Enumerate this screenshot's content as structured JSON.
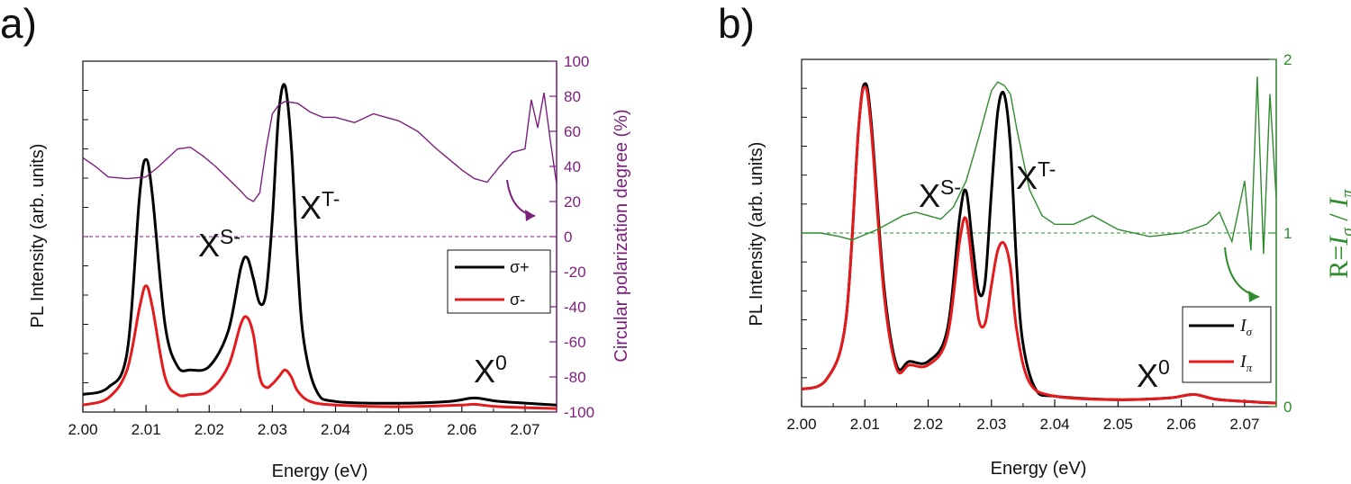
{
  "chart_data": [
    {
      "type": "line",
      "panel_label": "a)",
      "xlabel": "Energy (eV)",
      "ylabel": "PL Intensity (arb. units)",
      "y2label": "Circular polarization degree (%)",
      "xlim": [
        2.0,
        2.075
      ],
      "ylim": [
        0,
        1
      ],
      "y2lim": [
        -100,
        100
      ],
      "x_ticks": [
        "2.00",
        "2.01",
        "2.02",
        "2.03",
        "2.04",
        "2.05",
        "2.06",
        "2.07"
      ],
      "y2_ticks": [
        "-100",
        "-80",
        "-60",
        "-40",
        "-20",
        "0",
        "20",
        "40",
        "60",
        "80",
        "100"
      ],
      "grid": false,
      "legend_position": "middle-right",
      "colors": {
        "axis": "#111111",
        "sigma_plus": "#000000",
        "sigma_minus": "#e41a1c",
        "polarization": "#7b1f7b"
      },
      "annotations": [
        {
          "base": "X",
          "sup": "S-",
          "x": 2.0255,
          "y": 0.43
        },
        {
          "base": "X",
          "sup": "T-",
          "x": 2.035,
          "y": 0.56
        },
        {
          "base": "X",
          "sup": "0",
          "x": 2.064,
          "y": 0.09
        }
      ],
      "legend": [
        "σ+",
        "σ-"
      ],
      "series": [
        {
          "name": "σ+",
          "axis": "left",
          "x": [
            2.0,
            2.004,
            2.007,
            2.009,
            2.01,
            2.011,
            2.013,
            2.015,
            2.017,
            2.02,
            2.023,
            2.025,
            2.026,
            2.027,
            2.028,
            2.029,
            2.03,
            2.031,
            2.032,
            2.033,
            2.034,
            2.035,
            2.037,
            2.04,
            2.05,
            2.058,
            2.062,
            2.066,
            2.075
          ],
          "y": [
            0.05,
            0.07,
            0.17,
            0.62,
            0.72,
            0.62,
            0.25,
            0.13,
            0.12,
            0.13,
            0.23,
            0.41,
            0.44,
            0.38,
            0.31,
            0.34,
            0.55,
            0.85,
            0.93,
            0.76,
            0.42,
            0.2,
            0.06,
            0.03,
            0.025,
            0.03,
            0.04,
            0.03,
            0.02
          ]
        },
        {
          "name": "σ-",
          "axis": "left",
          "x": [
            2.0,
            2.004,
            2.007,
            2.009,
            2.01,
            2.011,
            2.013,
            2.015,
            2.017,
            2.02,
            2.023,
            2.025,
            2.026,
            2.027,
            2.028,
            2.029,
            2.03,
            2.031,
            2.032,
            2.033,
            2.034,
            2.036,
            2.04,
            2.05,
            2.06,
            2.062,
            2.066,
            2.075
          ],
          "y": [
            0.02,
            0.04,
            0.12,
            0.3,
            0.36,
            0.3,
            0.1,
            0.05,
            0.05,
            0.06,
            0.13,
            0.25,
            0.27,
            0.22,
            0.1,
            0.07,
            0.08,
            0.1,
            0.12,
            0.1,
            0.06,
            0.03,
            0.02,
            0.015,
            0.02,
            0.022,
            0.015,
            0.01
          ]
        },
        {
          "name": "Circular polarization degree",
          "axis": "right",
          "x": [
            2.0,
            2.002,
            2.004,
            2.007,
            2.01,
            2.012,
            2.015,
            2.017,
            2.019,
            2.021,
            2.023,
            2.025,
            2.026,
            2.027,
            2.028,
            2.029,
            2.03,
            2.031,
            2.032,
            2.034,
            2.036,
            2.038,
            2.04,
            2.043,
            2.046,
            2.048,
            2.05,
            2.053,
            2.056,
            2.058,
            2.06,
            2.062,
            2.064,
            2.066,
            2.068,
            2.07,
            2.071,
            2.072,
            2.073,
            2.074,
            2.075
          ],
          "y": [
            45,
            40,
            34,
            33,
            34,
            40,
            50,
            51,
            46,
            40,
            33,
            26,
            22,
            20,
            25,
            50,
            70,
            75,
            77,
            76,
            71,
            68,
            68,
            65,
            70,
            68,
            66,
            60,
            50,
            44,
            38,
            33,
            31,
            40,
            48,
            50,
            78,
            62,
            82,
            55,
            30
          ]
        }
      ],
      "reference_line": {
        "axis": "right",
        "y": 0
      }
    },
    {
      "type": "line",
      "panel_label": "b)",
      "xlabel": "Energy (eV)",
      "ylabel": "PL Intensity (arb. units)",
      "y2label": "R=Iσ / Iπ",
      "xlim": [
        2.0,
        2.075
      ],
      "ylim": [
        0,
        1
      ],
      "y2lim": [
        0,
        2
      ],
      "x_ticks": [
        "2.00",
        "2.01",
        "2.02",
        "2.03",
        "2.04",
        "2.05",
        "2.06",
        "2.07"
      ],
      "y2_ticks": [
        "0",
        "1",
        "2"
      ],
      "grid": false,
      "legend_position": "bottom-right",
      "colors": {
        "axis": "#111111",
        "i_sigma": "#000000",
        "i_pi": "#e41a1c",
        "ratio": "#2e8b2e"
      },
      "annotations": [
        {
          "base": "X",
          "sup": "S-",
          "x": 2.0265,
          "y": 0.6
        },
        {
          "base": "X",
          "sup": "T-",
          "x": 2.0345,
          "y": 0.66
        },
        {
          "base": "X",
          "sup": "0",
          "x": 2.0585,
          "y": 0.06
        }
      ],
      "legend": [
        {
          "main": "I",
          "sub": "σ"
        },
        {
          "main": "I",
          "sub": "π"
        }
      ],
      "series": [
        {
          "name": "Iσ",
          "axis": "left",
          "x": [
            2.0,
            2.004,
            2.007,
            2.009,
            2.01,
            2.011,
            2.013,
            2.015,
            2.017,
            2.02,
            2.023,
            2.025,
            2.026,
            2.027,
            2.028,
            2.029,
            2.03,
            2.031,
            2.032,
            2.033,
            2.034,
            2.035,
            2.037,
            2.04,
            2.05,
            2.058,
            2.062,
            2.066,
            2.075
          ],
          "y": [
            0.05,
            0.08,
            0.25,
            0.8,
            0.93,
            0.82,
            0.35,
            0.12,
            0.13,
            0.13,
            0.22,
            0.55,
            0.62,
            0.47,
            0.33,
            0.36,
            0.62,
            0.85,
            0.9,
            0.75,
            0.4,
            0.18,
            0.05,
            0.03,
            0.02,
            0.025,
            0.035,
            0.02,
            0.01
          ]
        },
        {
          "name": "Iπ",
          "axis": "left",
          "x": [
            2.0,
            2.004,
            2.007,
            2.009,
            2.01,
            2.011,
            2.013,
            2.015,
            2.017,
            2.02,
            2.023,
            2.025,
            2.026,
            2.027,
            2.028,
            2.029,
            2.03,
            2.031,
            2.032,
            2.033,
            2.034,
            2.036,
            2.04,
            2.05,
            2.058,
            2.062,
            2.066,
            2.075
          ],
          "y": [
            0.05,
            0.08,
            0.25,
            0.8,
            0.92,
            0.8,
            0.33,
            0.11,
            0.12,
            0.12,
            0.2,
            0.48,
            0.54,
            0.4,
            0.25,
            0.24,
            0.35,
            0.45,
            0.47,
            0.4,
            0.22,
            0.07,
            0.03,
            0.02,
            0.025,
            0.035,
            0.02,
            0.01
          ]
        },
        {
          "name": "R",
          "axis": "right",
          "x": [
            2.0,
            2.003,
            2.006,
            2.008,
            2.01,
            2.012,
            2.014,
            2.016,
            2.018,
            2.02,
            2.022,
            2.024,
            2.026,
            2.028,
            2.03,
            2.031,
            2.032,
            2.033,
            2.034,
            2.036,
            2.038,
            2.04,
            2.043,
            2.046,
            2.05,
            2.055,
            2.06,
            2.064,
            2.066,
            2.068,
            2.07,
            2.071,
            2.072,
            2.073,
            2.074,
            2.075
          ],
          "y": [
            1.0,
            1.0,
            0.98,
            0.96,
            0.99,
            1.02,
            1.06,
            1.1,
            1.12,
            1.1,
            1.08,
            1.15,
            1.3,
            1.55,
            1.82,
            1.87,
            1.85,
            1.8,
            1.6,
            1.25,
            1.1,
            1.05,
            1.05,
            1.1,
            1.02,
            0.98,
            1.0,
            1.05,
            1.12,
            0.95,
            1.3,
            0.9,
            1.9,
            0.88,
            1.8,
            1.2
          ]
        }
      ],
      "reference_line": {
        "axis": "right",
        "y": 1
      }
    }
  ]
}
